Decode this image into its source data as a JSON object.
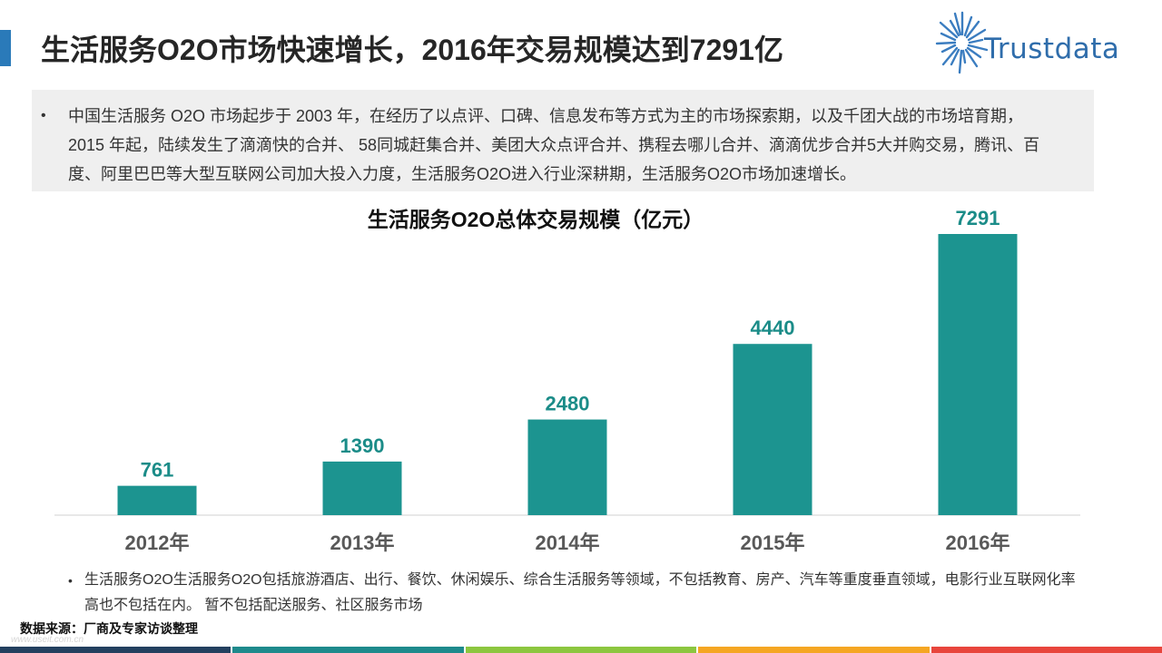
{
  "slide": {
    "title": "生活服务O2O市场快速增长，2016年交易规模达到7291亿",
    "logo": {
      "text": "Trustdata",
      "icon": "starburst-icon"
    },
    "summary": {
      "bullet": "•",
      "lines": [
        "中国生活服务 O2O 市场起步于 2003 年，在经历了以点评、口碑、信息发布等方式为主的市场探索期，以及千团大战的市场培育期，",
        "2015 年起，陆续发生了滴滴快的合并、 58同城赶集合并、美团大众点评合并、携程去哪儿合并、滴滴优步合并5大并购交易，腾讯、百",
        "度、阿里巴巴等大型互联网公司加大投入力度，生活服务O2O进入行业深耕期，生活服务O2O市场加速增长。"
      ]
    },
    "note": {
      "bullet": "•",
      "lines": [
        "生活服务O2O生活服务O2O包括旅游酒店、出行、餐饮、休闲娱乐、综合生活服务等领域，不包括教育、房产、汽车等重度垂直领域，电影行业互联网化率",
        "高也不包括在内。 暂不包括配送服务、社区服务市场"
      ]
    },
    "source": "数据来源：厂商及专家访谈整理",
    "watermark": "www.useit.com.cn"
  },
  "colors": {
    "accent": "#2a7ab9",
    "logo": "#2f6dab",
    "summary_background": "#efefef",
    "bottom_stripe": [
      "#23405f",
      "#1e8a8c",
      "#8cc63f",
      "#f5a623",
      "#e8453c"
    ]
  },
  "chart_data": {
    "type": "bar",
    "title": "生活服务O2O总体交易规模（亿元）",
    "categories": [
      "2012年",
      "2013年",
      "2014年",
      "2015年",
      "2016年"
    ],
    "values": [
      761,
      1390,
      2480,
      4440,
      7291
    ],
    "xlabel": "",
    "ylabel": "",
    "ylim": [
      0,
      7291
    ],
    "grid": false,
    "legend": "none",
    "data_labels": true,
    "bar_color": "#1c9490",
    "value_label_color": "#1b8c88",
    "category_label_color": "#595959",
    "axis_color": "#d0d0d0"
  }
}
